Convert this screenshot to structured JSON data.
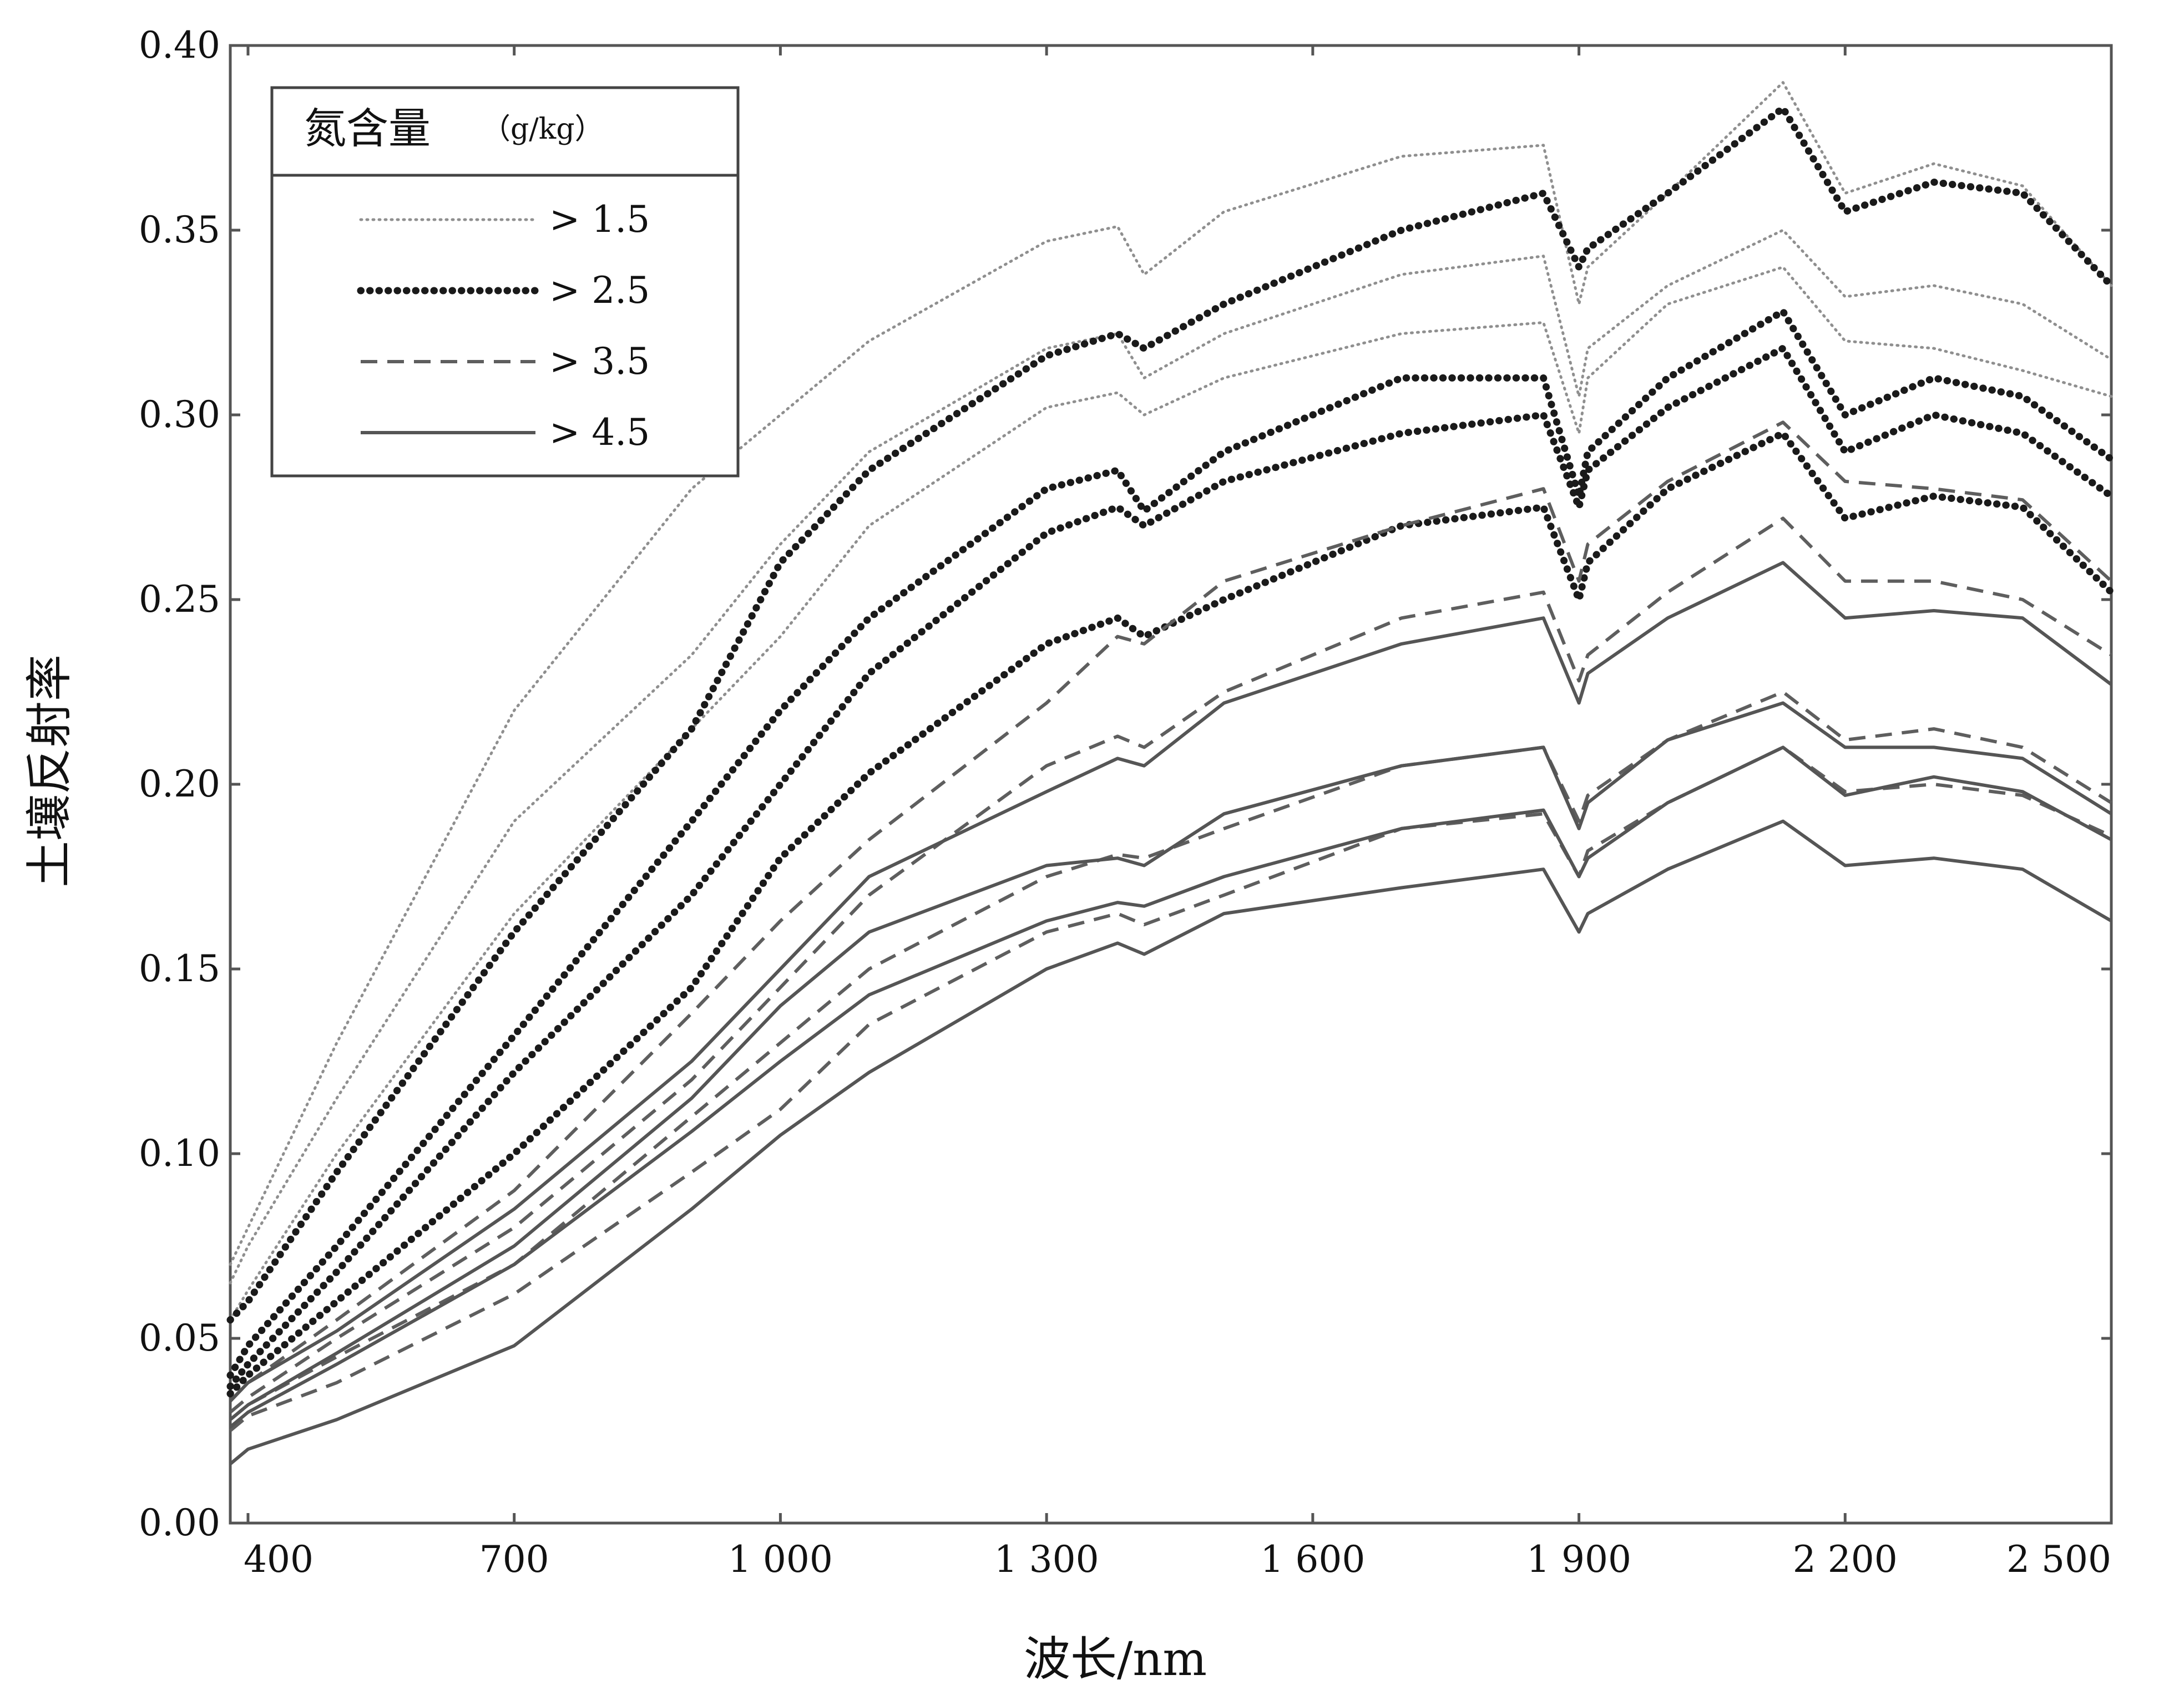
{
  "chart_data": {
    "type": "line",
    "title": "",
    "xlabel": "波长/nm",
    "ylabel": "土壤反射率",
    "xlim": [
      380,
      2500
    ],
    "ylim": [
      0,
      0.4
    ],
    "x_ticks": [
      400,
      700,
      1000,
      1300,
      1600,
      1900,
      2200,
      2500
    ],
    "x_tick_labels": [
      "400",
      "700",
      "1 000",
      "1 300",
      "1 600",
      "1 900",
      "2 200",
      "2 500"
    ],
    "y_ticks": [
      0,
      0.05,
      0.1,
      0.15,
      0.2,
      0.25,
      0.3,
      0.35,
      0.4
    ],
    "y_tick_labels": [
      "0.00",
      "0.05",
      "0.10",
      "0.15",
      "0.20",
      "0.25",
      "0.30",
      "0.35",
      "0.40"
    ],
    "grid": false,
    "legend": {
      "title": "氮含量",
      "unit": "（g/kg）",
      "placement": "top-left",
      "entries": [
        {
          "label": "> 1.5",
          "style": "dotted-light"
        },
        {
          "label": "> 2.5",
          "style": "dotted-bold"
        },
        {
          "label": "> 3.5",
          "style": "dashed"
        },
        {
          "label": "> 4.5",
          "style": "solid"
        }
      ]
    },
    "x": [
      380,
      400,
      500,
      700,
      900,
      1000,
      1100,
      1300,
      1380,
      1410,
      1500,
      1700,
      1860,
      1900,
      1910,
      2000,
      2130,
      2200,
      2300,
      2400,
      2500
    ],
    "series": [
      {
        "group": "> 1.5",
        "values": [
          0.07,
          0.08,
          0.13,
          0.22,
          0.28,
          0.3,
          0.32,
          0.347,
          0.351,
          0.338,
          0.355,
          0.37,
          0.373,
          0.33,
          0.34,
          0.36,
          0.39,
          0.36,
          0.368,
          0.362,
          0.335
        ]
      },
      {
        "group": "> 1.5",
        "values": [
          0.065,
          0.075,
          0.115,
          0.19,
          0.235,
          0.265,
          0.29,
          0.318,
          0.322,
          0.31,
          0.322,
          0.338,
          0.343,
          0.305,
          0.318,
          0.335,
          0.35,
          0.332,
          0.335,
          0.33,
          0.315
        ]
      },
      {
        "group": "> 1.5",
        "values": [
          0.055,
          0.063,
          0.1,
          0.165,
          0.215,
          0.24,
          0.27,
          0.302,
          0.306,
          0.3,
          0.31,
          0.322,
          0.325,
          0.295,
          0.31,
          0.33,
          0.34,
          0.32,
          0.318,
          0.312,
          0.305
        ]
      },
      {
        "group": "> 2.5",
        "values": [
          0.055,
          0.06,
          0.095,
          0.16,
          0.215,
          0.26,
          0.285,
          0.316,
          0.322,
          0.318,
          0.33,
          0.35,
          0.36,
          0.34,
          0.345,
          0.36,
          0.383,
          0.355,
          0.363,
          0.36,
          0.335
        ]
      },
      {
        "group": "> 2.5",
        "values": [
          0.04,
          0.048,
          0.075,
          0.132,
          0.19,
          0.22,
          0.245,
          0.28,
          0.285,
          0.274,
          0.29,
          0.31,
          0.31,
          0.278,
          0.29,
          0.31,
          0.328,
          0.3,
          0.31,
          0.305,
          0.288
        ]
      },
      {
        "group": "> 2.5",
        "values": [
          0.037,
          0.043,
          0.068,
          0.122,
          0.17,
          0.2,
          0.23,
          0.268,
          0.275,
          0.27,
          0.282,
          0.295,
          0.3,
          0.275,
          0.285,
          0.302,
          0.318,
          0.29,
          0.3,
          0.295,
          0.278
        ]
      },
      {
        "group": "> 2.5",
        "values": [
          0.035,
          0.04,
          0.06,
          0.1,
          0.145,
          0.18,
          0.203,
          0.238,
          0.245,
          0.24,
          0.25,
          0.27,
          0.275,
          0.25,
          0.26,
          0.28,
          0.295,
          0.272,
          0.278,
          0.275,
          0.252
        ]
      },
      {
        "group": "> 3.5",
        "values": [
          0.033,
          0.038,
          0.055,
          0.09,
          0.138,
          0.163,
          0.185,
          0.222,
          0.24,
          0.238,
          0.255,
          0.27,
          0.28,
          0.255,
          0.265,
          0.282,
          0.298,
          0.282,
          0.28,
          0.277,
          0.255
        ]
      },
      {
        "group": "> 3.5",
        "values": [
          0.03,
          0.034,
          0.05,
          0.08,
          0.12,
          0.145,
          0.17,
          0.205,
          0.213,
          0.21,
          0.225,
          0.245,
          0.252,
          0.228,
          0.235,
          0.252,
          0.272,
          0.255,
          0.255,
          0.25,
          0.235
        ]
      },
      {
        "group": "> 3.5",
        "values": [
          0.028,
          0.032,
          0.045,
          0.07,
          0.11,
          0.13,
          0.15,
          0.175,
          0.181,
          0.18,
          0.188,
          0.205,
          0.21,
          0.19,
          0.197,
          0.212,
          0.225,
          0.212,
          0.215,
          0.21,
          0.195
        ]
      },
      {
        "group": "> 3.5",
        "values": [
          0.025,
          0.029,
          0.038,
          0.062,
          0.095,
          0.112,
          0.135,
          0.16,
          0.165,
          0.162,
          0.17,
          0.188,
          0.192,
          0.175,
          0.182,
          0.195,
          0.21,
          0.198,
          0.2,
          0.197,
          0.186
        ]
      },
      {
        "group": "> 4.5",
        "values": [
          0.033,
          0.038,
          0.052,
          0.085,
          0.125,
          0.15,
          0.175,
          0.198,
          0.207,
          0.205,
          0.222,
          0.238,
          0.245,
          0.222,
          0.23,
          0.245,
          0.26,
          0.245,
          0.247,
          0.245,
          0.227
        ]
      },
      {
        "group": "> 4.5",
        "values": [
          0.028,
          0.032,
          0.046,
          0.075,
          0.115,
          0.14,
          0.16,
          0.178,
          0.18,
          0.178,
          0.192,
          0.205,
          0.21,
          0.188,
          0.195,
          0.212,
          0.222,
          0.21,
          0.21,
          0.207,
          0.192
        ]
      },
      {
        "group": "> 4.5",
        "values": [
          0.026,
          0.03,
          0.043,
          0.07,
          0.106,
          0.125,
          0.143,
          0.163,
          0.168,
          0.167,
          0.175,
          0.188,
          0.193,
          0.175,
          0.18,
          0.195,
          0.21,
          0.197,
          0.202,
          0.198,
          0.185
        ]
      },
      {
        "group": "> 4.5",
        "values": [
          0.016,
          0.02,
          0.028,
          0.048,
          0.085,
          0.105,
          0.122,
          0.15,
          0.157,
          0.154,
          0.165,
          0.172,
          0.177,
          0.16,
          0.165,
          0.177,
          0.19,
          0.178,
          0.18,
          0.177,
          0.163
        ]
      }
    ]
  }
}
